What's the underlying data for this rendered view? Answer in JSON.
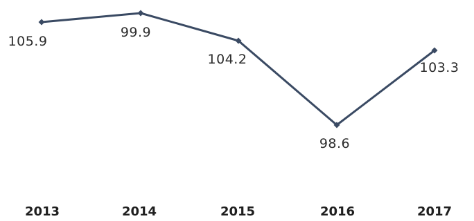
{
  "chart_data": {
    "type": "line",
    "categories": [
      "2013",
      "2014",
      "2015",
      "2016",
      "2017"
    ],
    "series": [
      {
        "values": [
          105.9,
          99.9,
          104.2,
          98.6,
          103.3
        ],
        "color": "#3a4a63"
      }
    ],
    "data_labels": [
      "105.9",
      "99.9",
      "104.2",
      "98.6",
      "103.3"
    ],
    "title": "",
    "xlabel": "",
    "ylabel": "",
    "legend": "none",
    "grid": false
  }
}
